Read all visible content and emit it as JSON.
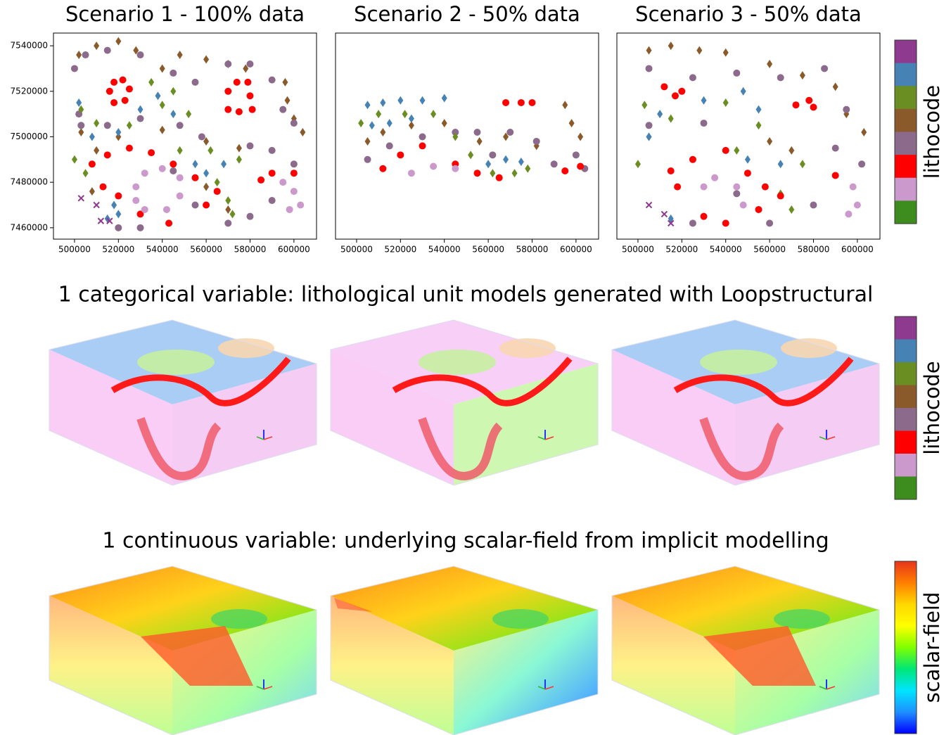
{
  "chart_data": [
    {
      "type": "scatter",
      "title": "Scenario 1 - 100% data",
      "xlim": [
        490400,
        610300
      ],
      "ylim": [
        7455000,
        7545600
      ],
      "xticks": [
        500000,
        520000,
        540000,
        560000,
        580000,
        600000
      ],
      "yticks": [
        7460000,
        7480000,
        7500000,
        7520000,
        7540000
      ],
      "series": [
        {
          "color": "#8b5a2b",
          "marker": "diamond",
          "x": [
            502000,
            510000,
            520000,
            528000,
            540000,
            548000,
            560000,
            570000,
            578000,
            596000,
            597000,
            600000,
            604000,
            503000,
            510000,
            520000,
            540000,
            560000,
            575000,
            560000,
            570000,
            508000
          ],
          "values": [
            7536000,
            7540000,
            7542000,
            7538000,
            7530000,
            7536000,
            7534000,
            7532000,
            7530000,
            7524000,
            7516000,
            7508000,
            7502000,
            7502000,
            7494000,
            7500000,
            7503000,
            7498000,
            7495000,
            7478000,
            7468000,
            7476000
          ]
        },
        {
          "color": "#8c6a8c",
          "marker": "circle",
          "x": [
            500000,
            505000,
            515000,
            530000,
            545000,
            555000,
            570000,
            580000,
            590000,
            503000,
            502000,
            515000,
            530000,
            548000,
            558000,
            580000,
            590000,
            600000,
            590000,
            580000,
            570000,
            555000,
            545000,
            520000,
            530000,
            595000,
            600000
          ],
          "values": [
            7530000,
            7536000,
            7538000,
            7536000,
            7528000,
            7524000,
            7532000,
            7532000,
            7525000,
            7505000,
            7510000,
            7505000,
            7508000,
            7505000,
            7500000,
            7496000,
            7494000,
            7488000,
            7472000,
            7465000,
            7462000,
            7470000,
            7485000,
            7460000,
            7460000,
            7512000,
            7506000
          ]
        },
        {
          "color": "#6b8e23",
          "marker": "diamond",
          "x": [
            503000,
            510000,
            525000,
            540000,
            545000,
            535000,
            552000,
            500000,
            505000,
            548000,
            562000,
            575000,
            565000,
            570000,
            572000
          ],
          "values": [
            7512000,
            7506000,
            7505000,
            7514000,
            7520000,
            7524000,
            7510000,
            7490000,
            7484000,
            7494000,
            7494000,
            7490000,
            7480000,
            7472000,
            7466000
          ]
        },
        {
          "color": "#4682b4",
          "marker": "diamond",
          "x": [
            502000,
            508000,
            520000,
            530000,
            538000,
            545000,
            555000,
            560000,
            568000,
            515000,
            520000,
            518000
          ],
          "values": [
            7515000,
            7500000,
            7502000,
            7512000,
            7518000,
            7510000,
            7488000,
            7484000,
            7488000,
            7464000,
            7466000,
            7470000
          ]
        },
        {
          "color": "#ff0000",
          "marker": "circle",
          "x": [
            516000,
            518000,
            522000,
            525000,
            523000,
            518000,
            570000,
            574000,
            579000,
            580000,
            581000,
            575000,
            570000,
            508000,
            515000,
            525000,
            535000,
            545000,
            555000,
            565000,
            560000,
            543000,
            530000,
            520000,
            513000,
            590000,
            600000,
            585000
          ],
          "values": [
            7520000,
            7524000,
            7525000,
            7521000,
            7516000,
            7515000,
            7520000,
            7524000,
            7524000,
            7518000,
            7512000,
            7511000,
            7512000,
            7488000,
            7492000,
            7495000,
            7493000,
            7488000,
            7482000,
            7476000,
            7470000,
            7462000,
            7466000,
            7474000,
            7478000,
            7484000,
            7484000,
            7481000
          ]
        },
        {
          "color": "#cc99cc",
          "marker": "circle",
          "x": [
            528000,
            532000,
            540000,
            548000,
            548000,
            542000,
            532000,
            528000,
            595000,
            600000,
            603000,
            598000
          ],
          "values": [
            7478000,
            7484000,
            7486000,
            7482000,
            7474000,
            7468000,
            7468000,
            7472000,
            7480000,
            7476000,
            7470000,
            7468000
          ]
        },
        {
          "color": "#8e3a8e",
          "marker": "x",
          "x": [
            503000,
            510000,
            512000,
            516000
          ],
          "values": [
            7473000,
            7470000,
            7463000,
            7463000
          ]
        }
      ]
    },
    {
      "type": "scatter",
      "title": "Scenario 2 - 50% data",
      "xlim": [
        490400,
        610300
      ],
      "ylim": [
        7455000,
        7545600
      ],
      "xticks": [
        500000,
        520000,
        540000,
        560000,
        580000,
        600000
      ],
      "series": [
        {
          "color": "#8b5a2b",
          "marker": "diamond",
          "x": [
            505000,
            512000,
            525000,
            540000,
            556000,
            568000,
            582000,
            595000,
            598000,
            602000
          ],
          "values": [
            7498000,
            7502000,
            7505000,
            7506000,
            7498000,
            7500000,
            7496000,
            7514000,
            7506000,
            7500000
          ]
        },
        {
          "color": "#8c6a8c",
          "marker": "circle",
          "x": [
            505000,
            515000,
            530000,
            545000,
            555000,
            570000,
            582000,
            590000,
            600000,
            604000,
            562000
          ],
          "values": [
            7490000,
            7496000,
            7500000,
            7502000,
            7502000,
            7502000,
            7498000,
            7488000,
            7492000,
            7486000,
            7492000
          ]
        },
        {
          "color": "#6b8e23",
          "marker": "diamond",
          "x": [
            502000,
            510000,
            522000,
            535000,
            545000,
            552000,
            562000,
            572000,
            578000
          ],
          "values": [
            7506000,
            7510000,
            7510000,
            7510000,
            7500000,
            7492000,
            7484000,
            7484000,
            7486000
          ]
        },
        {
          "color": "#4682b4",
          "marker": "diamond",
          "x": [
            505000,
            512000,
            520000,
            530000,
            540000,
            507000,
            515000,
            525000,
            560000,
            568000,
            575000
          ],
          "values": [
            7514000,
            7515000,
            7516000,
            7516000,
            7517000,
            7505000,
            7506000,
            7508000,
            7488000,
            7490000,
            7489000
          ]
        },
        {
          "color": "#ff0000",
          "marker": "circle",
          "x": [
            512000,
            520000,
            530000,
            545000,
            555000,
            565000,
            568000,
            575000,
            580000,
            595000,
            602000
          ],
          "values": [
            7486000,
            7492000,
            7496000,
            7488000,
            7484000,
            7482000,
            7515000,
            7515000,
            7515000,
            7485000,
            7487000
          ]
        },
        {
          "color": "#cc99cc",
          "marker": "circle",
          "x": [
            525000,
            535000,
            545000
          ],
          "values": [
            7484000,
            7487000,
            7486000
          ]
        }
      ]
    },
    {
      "type": "scatter",
      "title": "Scenario 3 - 50% data",
      "xlim": [
        490400,
        610300
      ],
      "ylim": [
        7455000,
        7545600
      ],
      "xticks": [
        500000,
        520000,
        540000,
        560000,
        580000,
        600000
      ],
      "series": [
        {
          "color": "#8b5a2b",
          "marker": "diamond",
          "x": [
            505000,
            515000,
            528000,
            540000,
            560000,
            575000,
            590000,
            595000,
            603000,
            505000,
            560000,
            570000
          ],
          "values": [
            7538000,
            7540000,
            7538000,
            7537000,
            7532000,
            7527000,
            7522000,
            7510000,
            7502000,
            7500000,
            7498000,
            7494000
          ]
        },
        {
          "color": "#8c6a8c",
          "marker": "circle",
          "x": [
            505000,
            525000,
            545000,
            565000,
            585000,
            505000,
            530000,
            590000,
            602000,
            580000,
            560000,
            525000,
            545000,
            595000
          ],
          "values": [
            7530000,
            7526000,
            7528000,
            7526000,
            7530000,
            7505000,
            7506000,
            7495000,
            7488000,
            7470000,
            7462000,
            7462000,
            7475000,
            7512000
          ]
        },
        {
          "color": "#6b8e23",
          "marker": "diamond",
          "x": [
            503000,
            515000,
            540000,
            555000,
            500000,
            545000,
            575000,
            565000,
            570000
          ],
          "values": [
            7514000,
            7508000,
            7515000,
            7505000,
            7488000,
            7494000,
            7488000,
            7475000,
            7468000
          ]
        },
        {
          "color": "#4682b4",
          "marker": "diamond",
          "x": [
            510000,
            505000,
            530000,
            548000,
            555000,
            550000,
            565000,
            515000
          ],
          "values": [
            7510000,
            7500000,
            7516000,
            7520000,
            7512000,
            7490000,
            7488000,
            7464000
          ]
        },
        {
          "color": "#ff0000",
          "marker": "circle",
          "x": [
            512000,
            520000,
            517000,
            578000,
            572000,
            580000,
            515000,
            525000,
            540000,
            550000,
            558000,
            565000,
            555000,
            540000,
            530000,
            518000,
            590000
          ],
          "values": [
            7522000,
            7520000,
            7518000,
            7516000,
            7514000,
            7513000,
            7485000,
            7490000,
            7494000,
            7484000,
            7478000,
            7474000,
            7468000,
            7462000,
            7465000,
            7478000,
            7483000
          ]
        },
        {
          "color": "#cc99cc",
          "marker": "circle",
          "x": [
            535000,
            530000,
            545000,
            548000,
            598000,
            600000,
            596000
          ],
          "values": [
            7482000,
            7478000,
            7478000,
            7470000,
            7478000,
            7470000,
            7466000
          ]
        },
        {
          "color": "#8e3a8e",
          "marker": "x",
          "x": [
            505000,
            512000,
            515000
          ],
          "values": [
            7470000,
            7466000,
            7462000
          ]
        }
      ]
    }
  ],
  "row_titles": [
    "1 categorical variable: lithological unit models generated with Loopstructural",
    "1 continuous variable: underlying scalar-field from implicit modelling"
  ],
  "colorbars": [
    {
      "label": "lithocode",
      "colors": [
        "#8e3a8e",
        "#4682b4",
        "#6b8e23",
        "#8b5a2b",
        "#8c6a8c",
        "#ff0000",
        "#cc99cc",
        "#3c8c1e"
      ]
    },
    {
      "label": "lithocode",
      "colors": [
        "#8e3a8e",
        "#4682b4",
        "#6b8e23",
        "#8b5a2b",
        "#8c6a8c",
        "#ff0000",
        "#cc99cc",
        "#3c8c1e"
      ]
    },
    {
      "label": "scalar-field",
      "gradient": true,
      "colors": [
        "#e8341c",
        "#ff7f00",
        "#ffd700",
        "#ffff00",
        "#7fff00",
        "#00e676",
        "#00e5ff",
        "#1e90ff",
        "#0000ff"
      ]
    }
  ]
}
